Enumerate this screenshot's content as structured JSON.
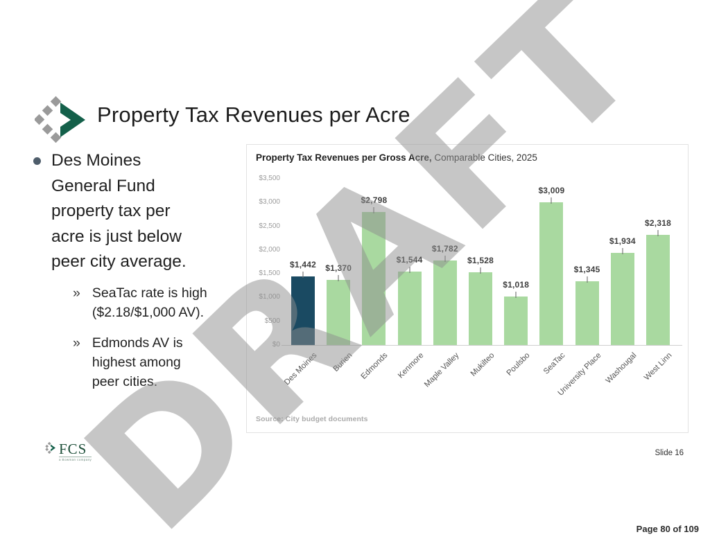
{
  "slide": {
    "title": "Property Tax Revenues per Acre",
    "watermark": "DRAFT",
    "bullets": {
      "main": "Des Moines\nGeneral Fund\nproperty tax per\nacre is just below\npeer city average.",
      "sub_marker": "»",
      "sub": [
        {
          "text": "SeaTac rate is high\n($2.18/$1,000 AV)."
        },
        {
          "text": "Edmonds AV is\nhighest among\npeer cities."
        }
      ]
    },
    "footer": {
      "logo_text": "FCS",
      "logo_tagline": "a Bowman company",
      "slide_label": "Slide 16",
      "page_label": "Page 80 of 109"
    }
  },
  "chart_data": {
    "type": "bar",
    "title_bold": "Property Tax Revenues per Gross Acre,",
    "title_suffix": " Comparable Cities, 2025",
    "categories": [
      "Des Moines",
      "Burien",
      "Edmonds",
      "Kenmore",
      "Maple Valley",
      "Mukilteo",
      "Poulsbo",
      "SeaTac",
      "University Place",
      "Washougal",
      "West Linn"
    ],
    "values": [
      1442,
      1370,
      2798,
      1544,
      1782,
      1528,
      1018,
      3009,
      1345,
      1934,
      2318
    ],
    "value_labels": [
      "$1,442",
      "$1,370",
      "$2,798",
      "$1,544",
      "$1,782",
      "$1,528",
      "$1,018",
      "$3,009",
      "$1,345",
      "$1,934",
      "$2,318"
    ],
    "y_ticks": [
      "$3,500",
      "$3,000",
      "$2,500",
      "$2,000",
      "$1,500",
      "$1,000",
      "$500",
      "$0"
    ],
    "ylim": [
      0,
      3500
    ],
    "grid": false,
    "legend": false,
    "highlight_category": "Des Moines",
    "colors": {
      "highlight_bar": "#1a4a62",
      "default_bar": "#a9d9a0"
    },
    "source": "Source: City budget documents",
    "xlabel": "",
    "ylabel": ""
  }
}
